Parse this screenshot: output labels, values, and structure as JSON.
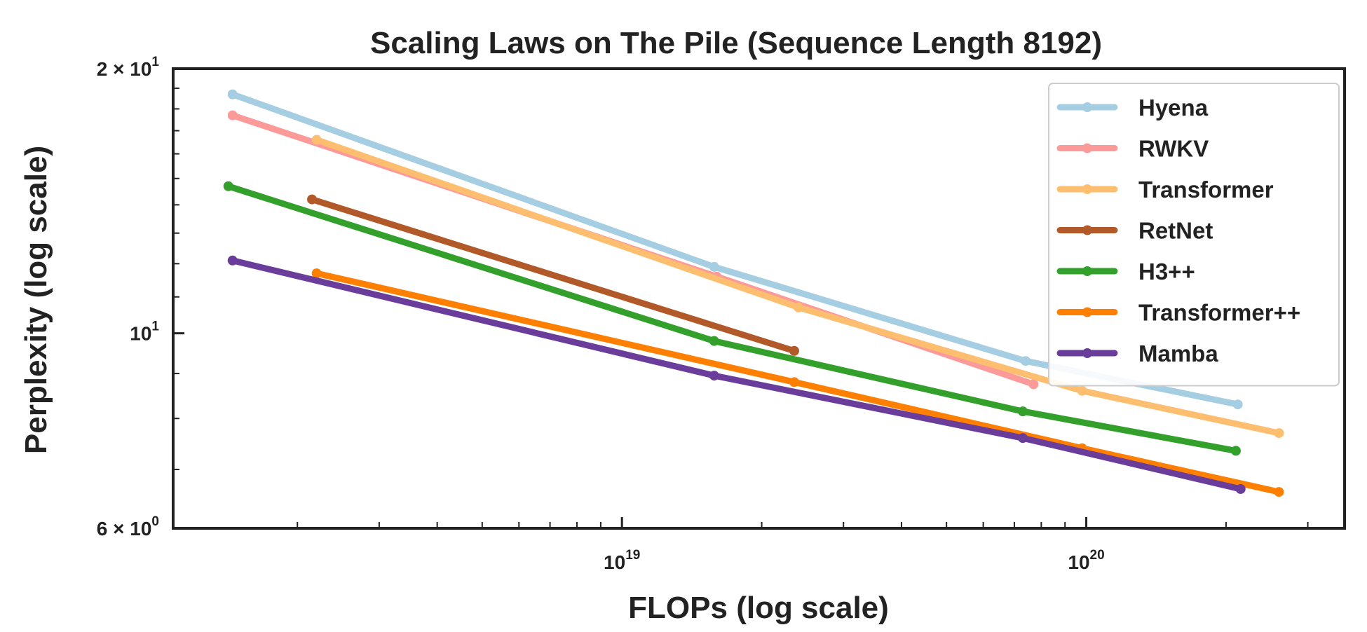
{
  "chart_data": {
    "type": "line",
    "title": "Scaling Laws on The Pile (Sequence Length 8192)",
    "xlabel": "FLOPs (log scale)",
    "ylabel": "Perplexity (log scale)",
    "x_scale": "log",
    "y_scale": "log",
    "xlim": [
      1.08e+18,
      3.6e+20
    ],
    "ylim": [
      6,
      20
    ],
    "x_ticks": [
      {
        "value": 1e+19,
        "base": "10",
        "exp": "19"
      },
      {
        "value": 1e+20,
        "base": "10",
        "exp": "20"
      }
    ],
    "y_ticks": [
      {
        "value": 20,
        "label": "2 × 10",
        "exp": "1"
      },
      {
        "value": 10,
        "label": "10",
        "exp": "1"
      },
      {
        "value": 6,
        "label": "6 × 10",
        "exp": "0"
      }
    ],
    "grid": false,
    "legend_position": "top-right",
    "series": [
      {
        "name": "Hyena",
        "color": "#a6cee3",
        "x": [
          1.45e+18,
          1.58e+19,
          7.4e+19,
          2.12e+20
        ],
        "y": [
          18.7,
          11.9,
          9.3,
          8.3
        ]
      },
      {
        "name": "RWKV",
        "color": "#fb9a99",
        "x": [
          1.45e+18,
          1.6e+19,
          7.7e+19
        ],
        "y": [
          17.7,
          11.6,
          8.75
        ]
      },
      {
        "name": "Transformer",
        "color": "#fdbf6f",
        "x": [
          2.2e+18,
          2.4e+19,
          9.8e+19,
          2.6e+20
        ],
        "y": [
          16.6,
          10.7,
          8.6,
          7.7
        ]
      },
      {
        "name": "RetNet",
        "color": "#b15928",
        "x": [
          2.15e+18,
          2.35e+19
        ],
        "y": [
          14.2,
          9.55
        ]
      },
      {
        "name": "H3++",
        "color": "#33a02c",
        "x": [
          1.42e+18,
          1.58e+19,
          7.3e+19,
          2.1e+20
        ],
        "y": [
          14.7,
          9.8,
          8.15,
          7.35
        ]
      },
      {
        "name": "Transformer++",
        "color": "#ff7f00",
        "x": [
          2.2e+18,
          2.35e+19,
          9.8e+19,
          2.6e+20
        ],
        "y": [
          11.7,
          8.8,
          7.4,
          6.6
        ]
      },
      {
        "name": "Mamba",
        "color": "#6a3d9a",
        "x": [
          1.45e+18,
          1.58e+19,
          7.3e+19,
          2.15e+20
        ],
        "y": [
          12.1,
          8.95,
          7.6,
          6.65
        ]
      }
    ]
  }
}
